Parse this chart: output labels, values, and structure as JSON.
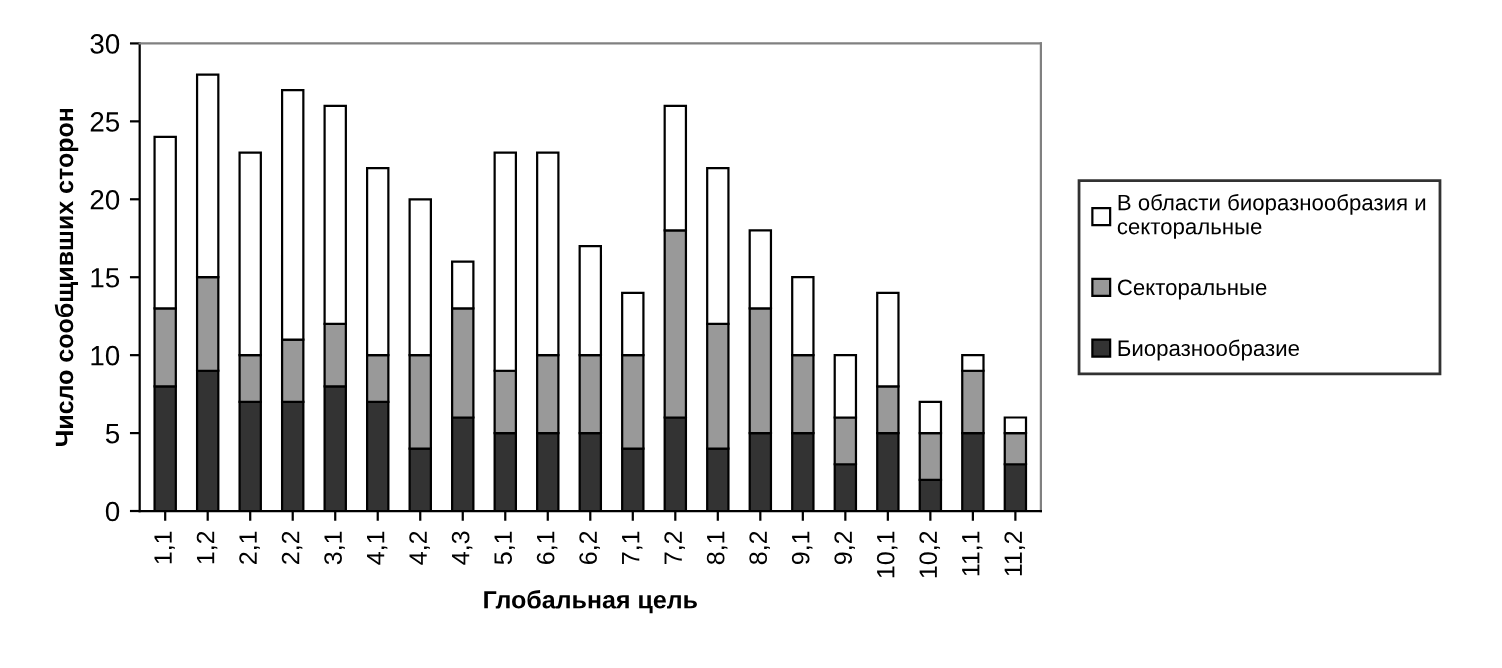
{
  "chart_data": {
    "type": "bar",
    "stacked": true,
    "xlabel": "Глобальная цель",
    "ylabel": "Число сообщивших сторон",
    "categories": [
      "1,1",
      "1,2",
      "2,1",
      "2,2",
      "3,1",
      "4,1",
      "4,2",
      "4,3",
      "5,1",
      "6,1",
      "6,2",
      "7,1",
      "7,2",
      "8,1",
      "8,2",
      "9,1",
      "9,2",
      "10,1",
      "10,2",
      "11,1",
      "11,2"
    ],
    "series": [
      {
        "name": "Биоразнообразие",
        "color": "#333333",
        "values": [
          8,
          9,
          7,
          7,
          8,
          7,
          4,
          6,
          5,
          5,
          5,
          4,
          6,
          4,
          5,
          5,
          3,
          5,
          2,
          5,
          3
        ]
      },
      {
        "name": "Секторальные",
        "color": "#999999",
        "values": [
          5,
          6,
          3,
          4,
          4,
          3,
          6,
          7,
          4,
          5,
          5,
          6,
          12,
          8,
          8,
          5,
          3,
          3,
          3,
          4,
          2
        ]
      },
      {
        "name": "В области биоразнообразия и секторальные",
        "color": "#ffffff",
        "values": [
          11,
          13,
          13,
          16,
          14,
          12,
          10,
          3,
          14,
          13,
          7,
          4,
          8,
          10,
          5,
          5,
          4,
          6,
          2,
          1,
          1
        ]
      }
    ],
    "ylim": [
      0,
      30
    ],
    "yticks": [
      0,
      5,
      10,
      15,
      20,
      25,
      30
    ],
    "grid": false,
    "legend": "right"
  }
}
